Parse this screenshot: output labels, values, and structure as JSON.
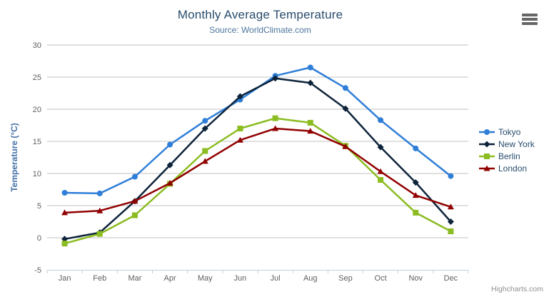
{
  "header": {
    "title": "Monthly Average Temperature",
    "subtitle": "Source: WorldClimate.com"
  },
  "context_menu": {
    "icon": "hamburger-icon"
  },
  "credits": {
    "label": "Highcharts.com"
  },
  "colors": {
    "title_text": "#274b6d",
    "subtitle_text": "#4d759e",
    "axis_title": "#4572a7",
    "tick_label": "#606060",
    "gridline": "#c0c0c0",
    "axis_line": "#c0d0e0",
    "legend_text": "#274b6d",
    "credits_text": "#909090",
    "menu_icon": "#666666"
  },
  "chart_data": {
    "type": "line",
    "title": "Monthly Average Temperature",
    "subtitle": "Source: WorldClimate.com",
    "xlabel": "",
    "ylabel": "Temperature (°C)",
    "categories": [
      "Jan",
      "Feb",
      "Mar",
      "Apr",
      "May",
      "Jun",
      "Jul",
      "Aug",
      "Sep",
      "Oct",
      "Nov",
      "Dec"
    ],
    "ylim": [
      -5,
      30
    ],
    "ytick_step": 5,
    "grid": true,
    "legend_position": "right",
    "series": [
      {
        "name": "Tokyo",
        "color": "#2f7ed8",
        "marker": "circle",
        "values": [
          7.0,
          6.9,
          9.5,
          14.5,
          18.2,
          21.5,
          25.2,
          26.5,
          23.3,
          18.3,
          13.9,
          9.6
        ]
      },
      {
        "name": "New York",
        "color": "#0d233a",
        "marker": "diamond",
        "values": [
          -0.2,
          0.8,
          5.7,
          11.3,
          17.0,
          22.0,
          24.8,
          24.1,
          20.1,
          14.1,
          8.6,
          2.5
        ]
      },
      {
        "name": "Berlin",
        "color": "#8bbc21",
        "marker": "square",
        "values": [
          -0.9,
          0.6,
          3.5,
          8.4,
          13.5,
          17.0,
          18.6,
          17.9,
          14.3,
          9.0,
          3.9,
          1.0
        ]
      },
      {
        "name": "London",
        "color": "#910000",
        "marker": "triangle",
        "values": [
          3.9,
          4.2,
          5.7,
          8.5,
          11.9,
          15.2,
          17.0,
          16.6,
          14.2,
          10.3,
          6.6,
          4.8
        ]
      }
    ]
  }
}
